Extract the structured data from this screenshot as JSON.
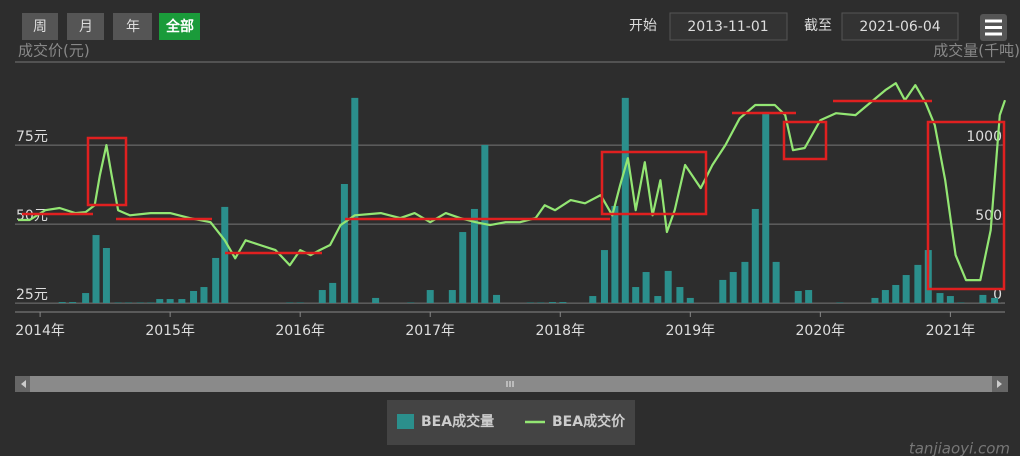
{
  "toolbar": {
    "buttons": [
      "周",
      "月",
      "年",
      "全部"
    ],
    "start_label": "开始",
    "start": "2013-11-01",
    "end_label": "截至",
    "end": "2021-06-04"
  },
  "watermark": "tanjiaoyi.com",
  "chart_data": {
    "type": "bar-line",
    "y_label": "成交价(元)",
    "y2_label": "成交量(千吨)",
    "xlim": [
      2013.83,
      2021.42
    ],
    "xticks": [
      {
        "value": 2014,
        "label": "2014年"
      },
      {
        "value": 2015,
        "label": "2015年"
      },
      {
        "value": 2016,
        "label": "2016年"
      },
      {
        "value": 2017,
        "label": "2017年"
      },
      {
        "value": 2018,
        "label": "2018年"
      },
      {
        "value": 2019,
        "label": "2019年"
      },
      {
        "value": 2020,
        "label": "2020年"
      },
      {
        "value": 2021,
        "label": "2021年"
      }
    ],
    "ylim": [
      22.2,
      101.3
    ],
    "yticks": [
      {
        "value": 25,
        "label": "25元"
      },
      {
        "value": 50,
        "label": "50元"
      },
      {
        "value": 75,
        "label": "75元"
      }
    ],
    "y2lim": [
      -57,
      1525
    ],
    "y2ticks": [
      0,
      500,
      1000
    ],
    "grid": true,
    "series": [
      {
        "name": "BEA成交量",
        "type": "bar",
        "axis": "y2",
        "color": "#2b8f8c",
        "x": [
          2014.17,
          2014.25,
          2014.35,
          2014.43,
          2014.51,
          2014.6,
          2014.68,
          2014.77,
          2014.85,
          2014.92,
          2015.0,
          2015.09,
          2015.18,
          2015.26,
          2015.35,
          2015.42,
          2015.92,
          2016.0,
          2016.17,
          2016.25,
          2016.34,
          2016.42,
          2016.58,
          2016.85,
          2017.0,
          2017.17,
          2017.25,
          2017.34,
          2017.42,
          2017.51,
          2017.77,
          2017.85,
          2017.94,
          2018.02,
          2018.25,
          2018.34,
          2018.42,
          2018.5,
          2018.58,
          2018.66,
          2018.75,
          2018.83,
          2018.92,
          2019.0,
          2019.25,
          2019.33,
          2019.42,
          2019.5,
          2019.58,
          2019.66,
          2019.83,
          2019.91,
          2020.15,
          2020.42,
          2020.5,
          2020.58,
          2020.66,
          2020.75,
          2020.83,
          2020.92,
          2021.0,
          2021.08,
          2021.25,
          2021.34
        ],
        "values": [
          6,
          6,
          63,
          430,
          348,
          3,
          3,
          3,
          3,
          25,
          25,
          25,
          76,
          101,
          285,
          608,
          3,
          3,
          82,
          127,
          753,
          1298,
          32,
          3,
          82,
          82,
          449,
          595,
          1000,
          51,
          3,
          3,
          6,
          6,
          44,
          335,
          614,
          1298,
          101,
          196,
          44,
          203,
          101,
          32,
          146,
          196,
          260,
          595,
          1209,
          260,
          76,
          82,
          3,
          32,
          82,
          114,
          177,
          241,
          335,
          63,
          44,
          3,
          51,
          32
        ]
      },
      {
        "name": "BEA成交价",
        "type": "line",
        "color": "#93e673",
        "x": [
          2013.83,
          2013.92,
          2014.04,
          2014.15,
          2014.27,
          2014.35,
          2014.42,
          2014.46,
          2014.51,
          2014.55,
          2014.6,
          2014.69,
          2014.85,
          2015.0,
          2015.15,
          2015.31,
          2015.42,
          2015.5,
          2015.58,
          2015.69,
          2015.81,
          2015.92,
          2016.0,
          2016.08,
          2016.15,
          2016.23,
          2016.31,
          2016.42,
          2016.62,
          2016.77,
          2016.88,
          2017.0,
          2017.12,
          2017.23,
          2017.35,
          2017.46,
          2017.58,
          2017.69,
          2017.81,
          2017.88,
          2017.96,
          2018.08,
          2018.19,
          2018.31,
          2018.4,
          2018.46,
          2018.52,
          2018.58,
          2018.65,
          2018.71,
          2018.77,
          2018.82,
          2018.88,
          2018.96,
          2019.08,
          2019.17,
          2019.27,
          2019.38,
          2019.5,
          2019.65,
          2019.73,
          2019.79,
          2019.88,
          2020.0,
          2020.12,
          2020.27,
          2020.38,
          2020.5,
          2020.58,
          2020.65,
          2020.73,
          2020.81,
          2020.88,
          2020.96,
          2021.04,
          2021.12,
          2021.23,
          2021.31,
          2021.38,
          2021.42
        ],
        "values": [
          51.3,
          51.3,
          54.4,
          55.1,
          53.5,
          53.8,
          56.0,
          65.5,
          75.0,
          65.5,
          54.4,
          52.8,
          53.5,
          53.5,
          51.9,
          50.6,
          44.9,
          39.2,
          44.9,
          43.4,
          41.8,
          37.0,
          41.8,
          40.2,
          41.8,
          43.4,
          49.7,
          52.8,
          53.5,
          51.9,
          53.5,
          50.6,
          53.5,
          51.9,
          50.6,
          49.7,
          50.6,
          50.6,
          51.9,
          56.0,
          54.4,
          57.6,
          56.6,
          59.2,
          52.8,
          62.3,
          70.9,
          54.4,
          69.6,
          52.8,
          63.9,
          47.5,
          54.4,
          68.7,
          61.4,
          68.7,
          75.0,
          83.5,
          87.7,
          87.7,
          84.5,
          73.4,
          74.1,
          82.9,
          85.1,
          84.5,
          88.3,
          92.4,
          94.6,
          89.2,
          94.0,
          88.3,
          81.3,
          63.9,
          40.2,
          32.3,
          32.3,
          48.1,
          84.5,
          89.2
        ]
      }
    ]
  }
}
